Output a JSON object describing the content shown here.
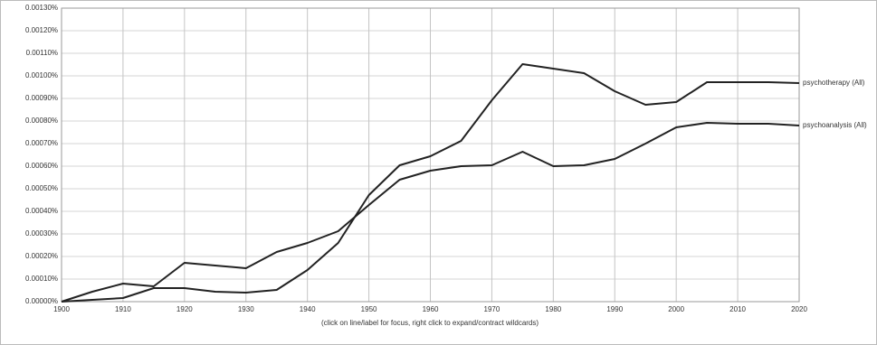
{
  "chart_data": {
    "type": "line",
    "x_label": "(click on line/label for focus, right click to expand/contract wildcards)",
    "x": [
      1900,
      1905,
      1910,
      1915,
      1920,
      1925,
      1930,
      1935,
      1940,
      1945,
      1950,
      1955,
      1960,
      1965,
      1970,
      1975,
      1980,
      1985,
      1990,
      1995,
      2000,
      2005,
      2010,
      2015,
      2020
    ],
    "series": [
      {
        "name": "psychotherapy (All)",
        "color": "#222222",
        "values": [
          0,
          8e-06,
          1.6e-05,
          6e-05,
          6e-05,
          4.4e-05,
          4e-05,
          5.2e-05,
          0.00014,
          0.00026,
          0.000472,
          0.000604,
          0.000644,
          0.000712,
          0.000892,
          0.001052,
          0.001032,
          0.001012,
          0.000932,
          0.000872,
          0.000884,
          0.000972,
          0.000972,
          0.000972,
          0.000968
        ]
      },
      {
        "name": "psychoanalysis (All)",
        "color": "#222222",
        "values": [
          0,
          4.4e-05,
          8e-05,
          6.8e-05,
          0.000172,
          0.00016,
          0.000148,
          0.00022,
          0.00026,
          0.000312,
          0.000428,
          0.00054,
          0.00058,
          0.0006,
          0.000604,
          0.000664,
          0.0006,
          0.000604,
          0.000632,
          0.0007,
          0.000772,
          0.000792,
          0.000788,
          0.000788,
          0.00078
        ]
      }
    ],
    "xlim": [
      1900,
      2020
    ],
    "xticks": [
      1900,
      1910,
      1920,
      1930,
      1940,
      1950,
      1960,
      1970,
      1980,
      1990,
      2000,
      2010,
      2020
    ],
    "ylim": [
      0,
      0.0013
    ],
    "yticks": [
      {
        "value": 0,
        "label": "0.00000%"
      },
      {
        "value": 0.0001,
        "label": "0.00010%"
      },
      {
        "value": 0.0002,
        "label": "0.00020%"
      },
      {
        "value": 0.0003,
        "label": "0.00030%"
      },
      {
        "value": 0.0004,
        "label": "0.00040%"
      },
      {
        "value": 0.0005,
        "label": "0.00050%"
      },
      {
        "value": 0.0006,
        "label": "0.00060%"
      },
      {
        "value": 0.0007,
        "label": "0.00070%"
      },
      {
        "value": 0.0008,
        "label": "0.00080%"
      },
      {
        "value": 0.0009,
        "label": "0.00090%"
      },
      {
        "value": 0.001,
        "label": "0.00100%"
      },
      {
        "value": 0.0011,
        "label": "0.00110%"
      },
      {
        "value": 0.0012,
        "label": "0.00120%"
      },
      {
        "value": 0.0013,
        "label": "0.00130%"
      }
    ],
    "grid": true
  }
}
